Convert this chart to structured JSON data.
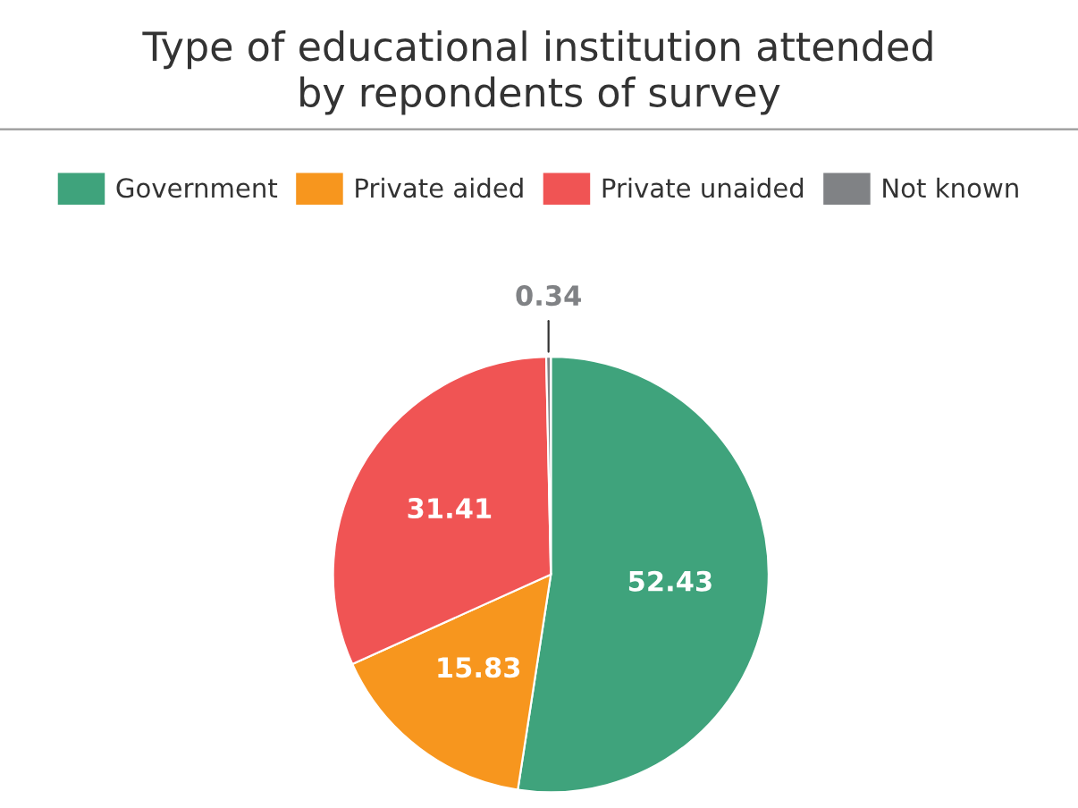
{
  "chart_data": {
    "type": "pie",
    "title": "Type of educational institution attended\nby repondents of survey",
    "categories": [
      "Government",
      "Private aided",
      "Private unaided",
      "Not known"
    ],
    "values": [
      52.43,
      15.83,
      31.41,
      0.34
    ],
    "colors": [
      "#3fa37c",
      "#f7961e",
      "#f05454",
      "#808285"
    ],
    "data_labels": true,
    "legend": "top"
  }
}
